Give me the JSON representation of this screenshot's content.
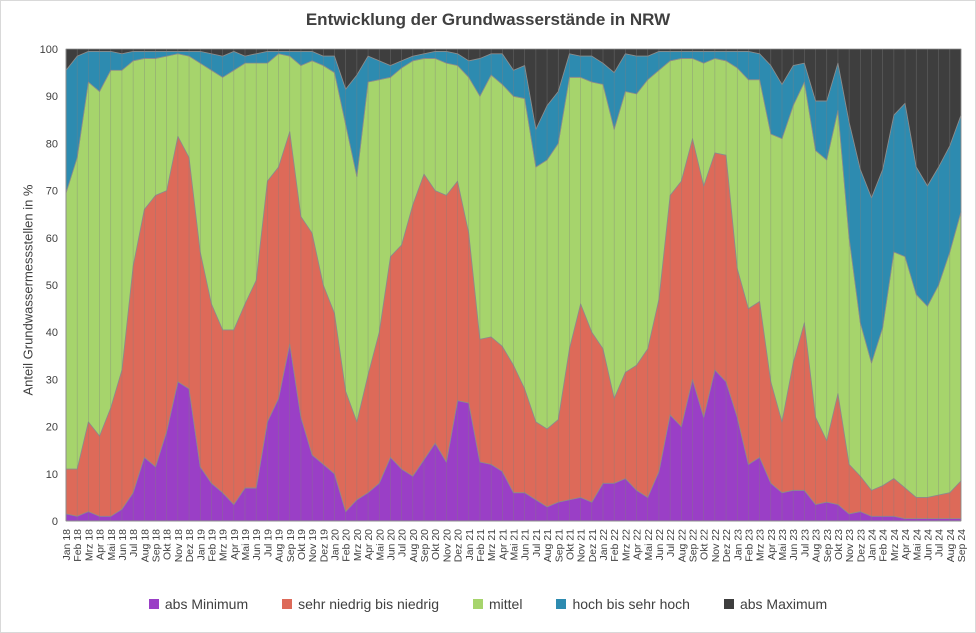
{
  "chart_data": {
    "type": "area",
    "stacked": true,
    "title": "Entwicklung der Grundwasserstände in NRW",
    "ylabel": "Anteil Grundwassermessstellen in %",
    "xlabel": "",
    "ylim": [
      0,
      100
    ],
    "yticks": [
      0,
      10,
      20,
      30,
      40,
      50,
      60,
      70,
      80,
      90,
      100
    ],
    "grid": "vertical",
    "legend_position": "bottom",
    "x": [
      "Jan 18",
      "Feb 18",
      "Mrz 18",
      "Apr 18",
      "Mai 18",
      "Jun 18",
      "Jul 18",
      "Aug 18",
      "Sep 18",
      "Okt 18",
      "Nov 18",
      "Dez 18",
      "Jan 19",
      "Feb 19",
      "Mrz 19",
      "Apr 19",
      "Mai 19",
      "Jun 19",
      "Jul 19",
      "Aug 19",
      "Sep 19",
      "Okt 19",
      "Nov 19",
      "Dez 19",
      "Jan 20",
      "Feb 20",
      "Mrz 20",
      "Apr 20",
      "Mai 20",
      "Jun 20",
      "Jul 20",
      "Aug 20",
      "Sep 20",
      "Okt 20",
      "Nov 20",
      "Dez 20",
      "Jan 21",
      "Feb 21",
      "Mrz 21",
      "Apr 21",
      "Mai 21",
      "Jun 21",
      "Jul 21",
      "Aug 21",
      "Sep 21",
      "Okt 21",
      "Nov 21",
      "Dez 21",
      "Jan 22",
      "Feb 22",
      "Mrz 22",
      "Apr 22",
      "Mai 22",
      "Jun 22",
      "Jul 22",
      "Aug 22",
      "Sep 22",
      "Okt 22",
      "Nov 22",
      "Dez 22",
      "Jan 23",
      "Feb 23",
      "Mrz 23",
      "Apr 23",
      "Mai 23",
      "Jun 23",
      "Jul 23",
      "Aug 23",
      "Sep 23",
      "Okt 23",
      "Nov 23",
      "Dez 23",
      "Jan 24",
      "Feb 24",
      "Mrz 24",
      "Apr 24",
      "Mai 24",
      "Jun 24",
      "Jul 24",
      "Aug 24",
      "Sep 24"
    ],
    "cumulative_upper": {
      "abs Minimum": [
        1.5,
        1,
        2,
        1,
        1,
        2.5,
        6,
        13.5,
        11.5,
        19,
        29.5,
        28,
        11.5,
        8,
        6,
        3.5,
        7,
        7,
        21,
        26,
        37.5,
        22,
        14,
        12,
        10,
        2,
        4.5,
        6,
        8,
        13.5,
        11,
        9.5,
        13,
        16.5,
        12.5,
        25.5,
        25,
        12.5,
        12,
        10.5,
        6,
        6,
        4.5,
        3,
        4,
        4.5,
        5,
        4,
        8,
        8,
        9,
        6.5,
        5,
        10.5,
        22.5,
        20,
        30,
        22,
        32,
        29.5,
        22,
        12,
        13.5,
        8,
        6,
        6.5,
        6.5,
        3.5,
        4,
        3.5,
        1.5,
        2,
        1,
        1,
        1,
        0.5,
        0.5,
        0.5,
        0.5,
        0.5,
        0.5
      ],
      "sehr niedrig bis niedrig": [
        11,
        11,
        21,
        18,
        24,
        32,
        54,
        66,
        69,
        70,
        81.5,
        77,
        57,
        46,
        40.5,
        40.5,
        46,
        51,
        72,
        75,
        82.5,
        64.5,
        61,
        50,
        44,
        27.5,
        21,
        31,
        40,
        56,
        58.5,
        67,
        73.5,
        70,
        69,
        72,
        61,
        38.5,
        39,
        37,
        33,
        28,
        21,
        19.5,
        21.5,
        36.5,
        46,
        40,
        36.5,
        26,
        31.5,
        33,
        36.5,
        47,
        69,
        72,
        81,
        71,
        78,
        77.5,
        53.5,
        45,
        46.5,
        29.5,
        21,
        33.5,
        42,
        22,
        17,
        27,
        12,
        9.5,
        6.5,
        7.5,
        9,
        7,
        5,
        5,
        5.5,
        6,
        8.5
      ],
      "mittel": [
        69.5,
        77,
        93,
        91,
        95.5,
        95.5,
        97.5,
        98,
        98,
        98.5,
        99,
        98.5,
        97,
        95.5,
        94,
        95.5,
        97,
        97,
        97,
        99,
        98.5,
        96.5,
        97.5,
        96.5,
        95,
        84,
        73,
        93,
        93.5,
        94,
        96,
        97.5,
        98,
        98,
        97,
        96.5,
        94,
        90,
        94.5,
        92.5,
        90,
        89.5,
        75,
        76.5,
        80,
        94,
        94,
        93,
        92.5,
        83,
        91,
        90.5,
        93.5,
        95.5,
        97.5,
        98,
        98,
        97,
        98,
        97.5,
        96,
        93.5,
        93.5,
        82,
        81,
        88,
        93,
        78.5,
        76.5,
        87,
        60,
        42,
        33.5,
        41,
        57,
        56,
        48,
        45.5,
        50,
        57,
        65.5
      ],
      "hoch bis sehr hoch": [
        95.5,
        98.5,
        99.5,
        99.5,
        99.5,
        99,
        99.5,
        99.5,
        99.5,
        99.5,
        99.5,
        99.5,
        99.5,
        99,
        98.5,
        99.5,
        98.5,
        99,
        99.5,
        99.5,
        99.5,
        99.5,
        99.5,
        98.5,
        98.5,
        91.5,
        94.5,
        98.5,
        97.5,
        96.5,
        97.5,
        98.5,
        99,
        99.5,
        99.5,
        99,
        97.5,
        98,
        99,
        99,
        95.5,
        96.5,
        83,
        88,
        91,
        99,
        98.5,
        98.5,
        97,
        95,
        99,
        98.5,
        98.5,
        99.5,
        99.5,
        99.5,
        99.5,
        99.5,
        99.5,
        99.5,
        99.5,
        99.5,
        99,
        96.5,
        92.5,
        96.5,
        97,
        89,
        89,
        97,
        84.5,
        74.5,
        68.5,
        74.5,
        86,
        88.5,
        75,
        71,
        75,
        79.5,
        86
      ],
      "abs Maximum": [
        100,
        100,
        100,
        100,
        100,
        100,
        100,
        100,
        100,
        100,
        100,
        100,
        100,
        100,
        100,
        100,
        100,
        100,
        100,
        100,
        100,
        100,
        100,
        100,
        100,
        100,
        100,
        100,
        100,
        100,
        100,
        100,
        100,
        100,
        100,
        100,
        100,
        100,
        100,
        100,
        100,
        100,
        100,
        100,
        100,
        100,
        100,
        100,
        100,
        100,
        100,
        100,
        100,
        100,
        100,
        100,
        100,
        100,
        100,
        100,
        100,
        100,
        100,
        100,
        100,
        100,
        100,
        100,
        100,
        100,
        100,
        100,
        100,
        100,
        100,
        100,
        100,
        100,
        100,
        100,
        100
      ]
    },
    "series": [
      {
        "name": "abs Minimum",
        "color": "#9a3fc6"
      },
      {
        "name": "sehr niedrig bis niedrig",
        "color": "#dd6a59"
      },
      {
        "name": "mittel",
        "color": "#a6d46c"
      },
      {
        "name": "hoch bis sehr hoch",
        "color": "#2d8bb0"
      },
      {
        "name": "abs Maximum",
        "color": "#3e3e3e"
      }
    ]
  }
}
